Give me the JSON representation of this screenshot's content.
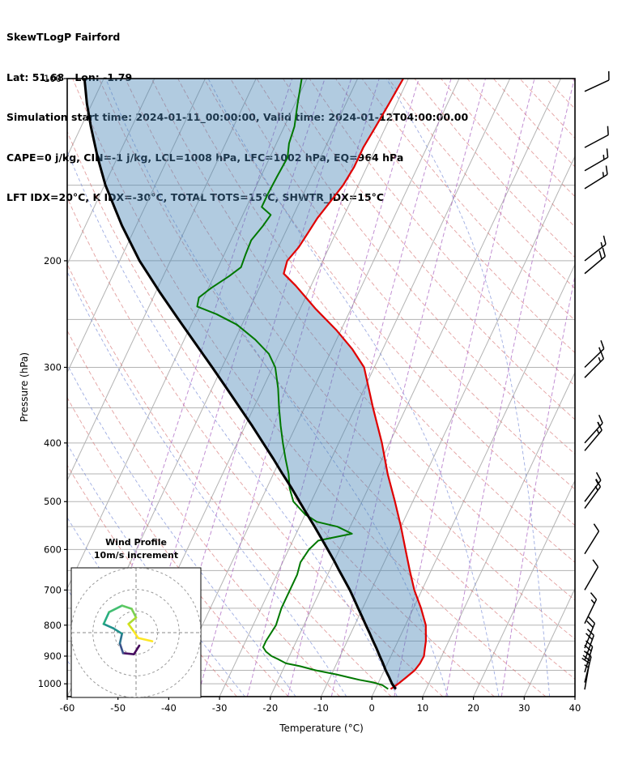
{
  "header": {
    "line1": "SkewTLogP Fairford",
    "line2": "Lat: 51.68   Lon: -1.79",
    "line3": "Simulation start time: 2024-01-11_00:00:00, Valid time: 2024-01-12T04:00:00.00",
    "line4": "CAPE=0 j/kg, CIN=-1 j/kg, LCL=1008 hPa, LFC=1002 hPa, EQ=964 hPa",
    "line5": "LFT IDX=20°C, K IDX=-30°C, TOTAL TOTS=15°C, SHWTR_IDX=15°C"
  },
  "chart_data": {
    "type": "skewt-logp",
    "title": "SkewTLogP Fairford",
    "station": "Fairford",
    "lat": 51.68,
    "lon": -1.79,
    "xlabel": "Temperature (°C)",
    "ylabel": "Pressure (hPa)",
    "temp_range": [
      -60,
      40
    ],
    "pressure_range": [
      100,
      1050
    ],
    "x_ticks": [
      -60,
      -50,
      -40,
      -30,
      -20,
      -10,
      0,
      10,
      20,
      30,
      40
    ],
    "pressure_ticks": [
      100,
      200,
      300,
      400,
      500,
      600,
      700,
      800,
      900,
      1000
    ],
    "pressure_grid": [
      150,
      200,
      250,
      300,
      350,
      400,
      450,
      500,
      550,
      600,
      650,
      700,
      750,
      800,
      850,
      900,
      950,
      1000
    ],
    "isotherm_step": 10,
    "dry_adiabats_thetaC": {
      "start": -30,
      "end": 260,
      "step": 10
    },
    "moist_adiabats_startC": {
      "start": -55,
      "end": 55,
      "step": 10
    },
    "mixing_ratios_gkg": [
      0.02,
      0.05,
      0.1,
      0.2,
      0.5,
      1,
      2,
      5,
      10,
      20
    ],
    "temperature_profile": [
      [
        1020,
        3
      ],
      [
        1000,
        4
      ],
      [
        975,
        5
      ],
      [
        950,
        6
      ],
      [
        925,
        6.4
      ],
      [
        900,
        6.5
      ],
      [
        875,
        6
      ],
      [
        850,
        5.5
      ],
      [
        800,
        4
      ],
      [
        750,
        1.5
      ],
      [
        700,
        -1.5
      ],
      [
        650,
        -4.2
      ],
      [
        600,
        -7
      ],
      [
        550,
        -10
      ],
      [
        500,
        -13.5
      ],
      [
        450,
        -17.5
      ],
      [
        400,
        -21.5
      ],
      [
        350,
        -26.5
      ],
      [
        300,
        -32
      ],
      [
        280,
        -36
      ],
      [
        260,
        -41
      ],
      [
        240,
        -47
      ],
      [
        220,
        -53
      ],
      [
        210,
        -56.5
      ],
      [
        200,
        -57
      ],
      [
        190,
        -56
      ],
      [
        180,
        -55.5
      ],
      [
        170,
        -55
      ],
      [
        160,
        -54
      ],
      [
        150,
        -53
      ],
      [
        140,
        -52.5
      ],
      [
        130,
        -52.5
      ],
      [
        120,
        -52
      ],
      [
        110,
        -51.5
      ],
      [
        100,
        -51
      ]
    ],
    "dewpoint_profile": [
      [
        1020,
        2.5
      ],
      [
        1005,
        1
      ],
      [
        995,
        -1
      ],
      [
        985,
        -4
      ],
      [
        975,
        -6.5
      ],
      [
        965,
        -9
      ],
      [
        950,
        -13.5
      ],
      [
        935,
        -17
      ],
      [
        925,
        -20
      ],
      [
        910,
        -22
      ],
      [
        900,
        -23.5
      ],
      [
        885,
        -25
      ],
      [
        870,
        -26
      ],
      [
        850,
        -26
      ],
      [
        800,
        -25.5
      ],
      [
        750,
        -26
      ],
      [
        700,
        -26
      ],
      [
        660,
        -26
      ],
      [
        630,
        -26.5
      ],
      [
        600,
        -26
      ],
      [
        580,
        -25
      ],
      [
        565,
        -19
      ],
      [
        550,
        -22.5
      ],
      [
        540,
        -27
      ],
      [
        525,
        -30
      ],
      [
        500,
        -33.5
      ],
      [
        475,
        -35.5
      ],
      [
        450,
        -37
      ],
      [
        425,
        -39
      ],
      [
        400,
        -41
      ],
      [
        375,
        -43
      ],
      [
        350,
        -45
      ],
      [
        325,
        -47
      ],
      [
        300,
        -49.5
      ],
      [
        285,
        -52
      ],
      [
        270,
        -56
      ],
      [
        255,
        -61
      ],
      [
        245,
        -66
      ],
      [
        238,
        -70.5
      ],
      [
        230,
        -71
      ],
      [
        222,
        -69.5
      ],
      [
        212,
        -67
      ],
      [
        205,
        -65.5
      ],
      [
        195,
        -65.8
      ],
      [
        185,
        -66
      ],
      [
        175,
        -65
      ],
      [
        168,
        -64.5
      ],
      [
        163,
        -67
      ],
      [
        155,
        -67
      ],
      [
        145,
        -66.8
      ],
      [
        135,
        -66.5
      ],
      [
        128,
        -67.5
      ],
      [
        120,
        -68
      ],
      [
        110,
        -69.5
      ],
      [
        100,
        -71
      ]
    ],
    "parcel_profile": [
      [
        1020,
        4
      ],
      [
        1000,
        2.8
      ],
      [
        975,
        1.6
      ],
      [
        950,
        0.3
      ],
      [
        925,
        -0.9
      ],
      [
        900,
        -2.2
      ],
      [
        875,
        -3.5
      ],
      [
        850,
        -4.9
      ],
      [
        825,
        -6.3
      ],
      [
        800,
        -7.8
      ],
      [
        775,
        -9.3
      ],
      [
        750,
        -10.9
      ],
      [
        725,
        -12.5
      ],
      [
        700,
        -14.2
      ],
      [
        675,
        -16.1
      ],
      [
        650,
        -18.1
      ],
      [
        625,
        -20.1
      ],
      [
        600,
        -22.3
      ],
      [
        575,
        -24.6
      ],
      [
        550,
        -27
      ],
      [
        525,
        -29.6
      ],
      [
        500,
        -32.3
      ],
      [
        475,
        -35.1
      ],
      [
        450,
        -38.2
      ],
      [
        425,
        -41.4
      ],
      [
        400,
        -44.9
      ],
      [
        375,
        -48.6
      ],
      [
        350,
        -52.7
      ],
      [
        325,
        -57.1
      ],
      [
        300,
        -61.9
      ],
      [
        275,
        -67.2
      ],
      [
        250,
        -73
      ],
      [
        225,
        -79.3
      ],
      [
        200,
        -86.1
      ],
      [
        175,
        -92.8
      ],
      [
        150,
        -99.8
      ],
      [
        135,
        -103.9
      ],
      [
        120,
        -108.1
      ],
      [
        110,
        -111
      ],
      [
        100,
        -113.8
      ]
    ],
    "wind_barbs": [
      {
        "p": 105,
        "dir": 65,
        "spd": 12
      },
      {
        "p": 130,
        "dir": 62,
        "spd": 10
      },
      {
        "p": 142,
        "dir": 60,
        "spd": 15
      },
      {
        "p": 152,
        "dir": 58,
        "spd": 15
      },
      {
        "p": 200,
        "dir": 52,
        "spd": 18
      },
      {
        "p": 210,
        "dir": 50,
        "spd": 20
      },
      {
        "p": 300,
        "dir": 46,
        "spd": 15
      },
      {
        "p": 312,
        "dir": 45,
        "spd": 15
      },
      {
        "p": 400,
        "dir": 42,
        "spd": 16
      },
      {
        "p": 412,
        "dir": 40,
        "spd": 18
      },
      {
        "p": 500,
        "dir": 37,
        "spd": 15
      },
      {
        "p": 513,
        "dir": 36,
        "spd": 16
      },
      {
        "p": 610,
        "dir": 32,
        "spd": 12
      },
      {
        "p": 700,
        "dir": 30,
        "spd": 12
      },
      {
        "p": 795,
        "dir": 26,
        "spd": 15
      },
      {
        "p": 873,
        "dir": 22,
        "spd": 20
      },
      {
        "p": 915,
        "dir": 20,
        "spd": 22
      },
      {
        "p": 957,
        "dir": 17,
        "spd": 25
      },
      {
        "p": 995,
        "dir": 14,
        "spd": 20
      },
      {
        "p": 1022,
        "dir": 10,
        "spd": 15
      }
    ],
    "hodograph": {
      "title": "Wind Profile",
      "subtitle": "10m/s increment",
      "ring_increment_ms": 10,
      "rings": [
        10,
        20,
        30
      ],
      "trace": [
        {
          "u": 1.5,
          "v": -6,
          "c": "#440154"
        },
        {
          "u": -1,
          "v": -10,
          "c": "#46085c"
        },
        {
          "u": -6,
          "v": -9.5,
          "c": "#471063"
        },
        {
          "u": -7.5,
          "v": -5,
          "c": "#3b528b"
        },
        {
          "u": -6.5,
          "v": -0.5,
          "c": "#2c728e"
        },
        {
          "u": -10.5,
          "v": 2,
          "c": "#21918c"
        },
        {
          "u": -15,
          "v": 4,
          "c": "#21918c"
        },
        {
          "u": -12.5,
          "v": 9.5,
          "c": "#27ad81"
        },
        {
          "u": -6.5,
          "v": 12.5,
          "c": "#42be71"
        },
        {
          "u": -2,
          "v": 11,
          "c": "#5ec962"
        },
        {
          "u": 0,
          "v": 7,
          "c": "#7ad151"
        },
        {
          "u": -3.5,
          "v": 4,
          "c": "#aadc32"
        },
        {
          "u": -1,
          "v": 0.5,
          "c": "#d8e219"
        },
        {
          "u": 1,
          "v": -2.5,
          "c": "#fde725"
        },
        {
          "u": 7.5,
          "v": -4,
          "c": "#fde725"
        }
      ]
    },
    "colors": {
      "temperature": "#e00000",
      "dewpoint": "#007800",
      "parcel": "#000000",
      "cin_shade": "rgba(70,130,180,0.42)",
      "isotherm": "#b3b3b3",
      "pressure_grid": "#b3b3b3",
      "dry_adiabat": "#d06060",
      "moist_adiabat": "#6a7fd2",
      "mixing_ratio": "#a85fc0",
      "frame": "#000000",
      "barb": "#000000"
    }
  }
}
